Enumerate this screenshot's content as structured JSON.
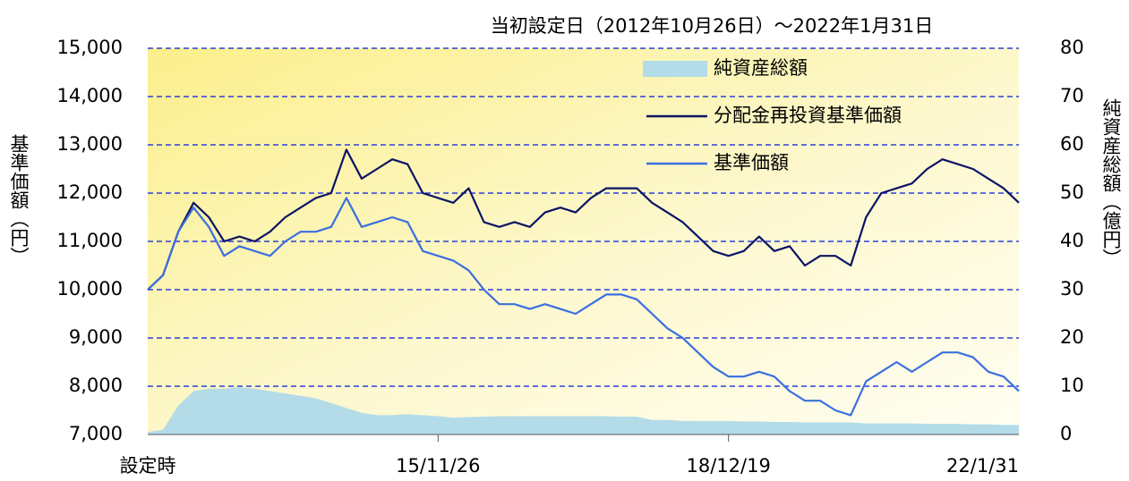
{
  "chart_data": {
    "type": "line",
    "title": "当初設定日（2012年10月26日）～2022年1月31日",
    "y_label": "基準価額（円）",
    "y2_label": "純資産総額（億円）",
    "categories": [
      "設定時",
      null,
      null,
      null,
      null,
      null,
      null,
      null,
      null,
      null,
      null,
      null,
      null,
      null,
      null,
      null,
      null,
      null,
      null,
      "15/11/26",
      null,
      null,
      null,
      null,
      null,
      null,
      null,
      null,
      null,
      null,
      null,
      null,
      null,
      null,
      null,
      null,
      null,
      null,
      "18/12/19",
      null,
      null,
      null,
      null,
      null,
      null,
      null,
      null,
      null,
      null,
      null,
      null,
      null,
      null,
      null,
      null,
      null,
      null,
      "22/1/31"
    ],
    "ylim": [
      7000,
      15000
    ],
    "yticks": [
      {
        "value": 7000,
        "label": "7,000"
      },
      {
        "value": 8000,
        "label": "8,000"
      },
      {
        "value": 9000,
        "label": "9,000"
      },
      {
        "value": 10000,
        "label": "10,000"
      },
      {
        "value": 11000,
        "label": "11,000"
      },
      {
        "value": 12000,
        "label": "12,000"
      },
      {
        "value": 13000,
        "label": "13,000"
      },
      {
        "value": 14000,
        "label": "14,000"
      },
      {
        "value": 15000,
        "label": "15,000"
      }
    ],
    "y2lim": [
      0,
      80
    ],
    "y2ticks": [
      0,
      10,
      20,
      30,
      40,
      50,
      60,
      70,
      80
    ],
    "grid": true,
    "legend": "top",
    "series": [
      {
        "name": "純資産総額",
        "type": "area",
        "axis": "y2",
        "color": "#b3dce8",
        "values": [
          0.5,
          1,
          6,
          9,
          9.5,
          9.5,
          9.8,
          9.5,
          9,
          8.5,
          8,
          7.5,
          6.5,
          5.5,
          4.5,
          4,
          4,
          4.2,
          4,
          3.8,
          3.5,
          3.6,
          3.7,
          3.8,
          3.8,
          3.8,
          3.8,
          3.8,
          3.8,
          3.8,
          3.8,
          3.7,
          3.7,
          3,
          3,
          2.8,
          2.8,
          2.8,
          2.8,
          2.7,
          2.7,
          2.6,
          2.6,
          2.5,
          2.5,
          2.5,
          2.5,
          2.3,
          2.3,
          2.3,
          2.3,
          2.2,
          2.2,
          2.2,
          2.1,
          2.1,
          2.0,
          2.0
        ]
      },
      {
        "name": "分配金再投資基準価額",
        "type": "line",
        "color": "#0b1466",
        "values": [
          10000,
          10300,
          11200,
          11800,
          11500,
          11000,
          11100,
          11000,
          11200,
          11500,
          11700,
          11900,
          12000,
          12900,
          12300,
          12500,
          12700,
          12600,
          12000,
          11900,
          11800,
          12100,
          11400,
          11300,
          11400,
          11300,
          11600,
          11700,
          11600,
          11900,
          12100,
          12100,
          12100,
          11800,
          11600,
          11400,
          11100,
          10800,
          10700,
          10800,
          11100,
          10800,
          10900,
          10500,
          10700,
          10700,
          10500,
          11500,
          12000,
          12100,
          12200,
          12500,
          12700,
          12600,
          12500,
          12300,
          12100,
          11800
        ]
      },
      {
        "name": "基準価額",
        "type": "line",
        "color": "#3a6fe0",
        "values": [
          10000,
          10300,
          11200,
          11700,
          11300,
          10700,
          10900,
          10800,
          10700,
          11000,
          11200,
          11200,
          11300,
          11900,
          11300,
          11400,
          11500,
          11400,
          10800,
          10700,
          10600,
          10400,
          10000,
          9700,
          9700,
          9600,
          9700,
          9600,
          9500,
          9700,
          9900,
          9900,
          9800,
          9500,
          9200,
          9000,
          8700,
          8400,
          8200,
          8200,
          8300,
          8200,
          7900,
          7700,
          7700,
          7500,
          7400,
          8100,
          8300,
          8500,
          8300,
          8500,
          8700,
          8700,
          8600,
          8300,
          8200,
          7900
        ]
      }
    ]
  }
}
